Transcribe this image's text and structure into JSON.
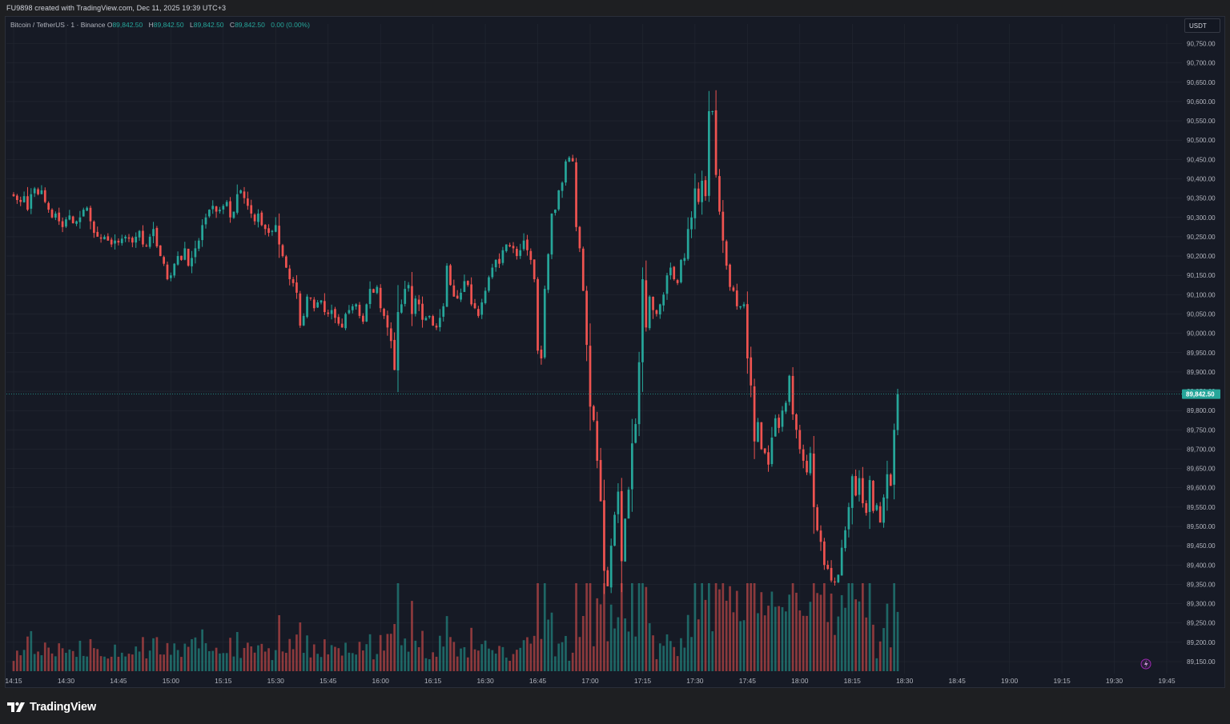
{
  "header": {
    "attribution": "FU9898 created with TradingView.com, Dec 11, 2025 19:39 UTC+3"
  },
  "legend": {
    "symbol": "Bitcoin / TetherUS · 1 · Binance",
    "open_label": "O",
    "open": "89,842.50",
    "high_label": "H",
    "high": "89,842.50",
    "low_label": "L",
    "low": "89,842.50",
    "close_label": "C",
    "close": "89,842.50",
    "change": "0.00 (0.00%)"
  },
  "currency_button": "USDT",
  "last_price_label": "89,842.50",
  "footer": {
    "brand": "TradingView"
  },
  "colors": {
    "up": "#26a69a",
    "down": "#ef5350",
    "background": "#161a25",
    "grid": "#242833",
    "text": "#b2b5be"
  },
  "chart_data": {
    "type": "candlestick",
    "symbol": "Bitcoin / TetherUS",
    "interval": "1",
    "exchange": "Binance",
    "ylim": [
      89125,
      90785
    ],
    "y_ticks": [
      "90,750.00",
      "90,700.00",
      "90,650.00",
      "90,600.00",
      "90,550.00",
      "90,500.00",
      "90,450.00",
      "90,400.00",
      "90,350.00",
      "90,300.00",
      "90,250.00",
      "90,200.00",
      "90,150.00",
      "90,100.00",
      "90,050.00",
      "90,000.00",
      "89,950.00",
      "89,900.00",
      "89,850.00",
      "89,800.00",
      "89,750.00",
      "89,700.00",
      "89,650.00",
      "89,600.00",
      "89,550.00",
      "89,500.00",
      "89,450.00",
      "89,400.00",
      "89,350.00",
      "89,300.00",
      "89,250.00",
      "89,200.00",
      "89,150.00"
    ],
    "x_range_minutes": [
      855,
      1185
    ],
    "x_ticks": [
      {
        "label": "14:15",
        "minute": 855
      },
      {
        "label": "14:30",
        "minute": 870
      },
      {
        "label": "14:45",
        "minute": 885
      },
      {
        "label": "15:00",
        "minute": 900
      },
      {
        "label": "15:15",
        "minute": 915
      },
      {
        "label": "15:30",
        "minute": 930
      },
      {
        "label": "15:45",
        "minute": 945
      },
      {
        "label": "16:00",
        "minute": 960
      },
      {
        "label": "16:15",
        "minute": 975
      },
      {
        "label": "16:30",
        "minute": 990
      },
      {
        "label": "16:45",
        "minute": 1005
      },
      {
        "label": "17:00",
        "minute": 1020
      },
      {
        "label": "17:15",
        "minute": 1035
      },
      {
        "label": "17:30",
        "minute": 1050
      },
      {
        "label": "17:45",
        "minute": 1065
      },
      {
        "label": "18:00",
        "minute": 1080
      },
      {
        "label": "18:15",
        "minute": 1095
      },
      {
        "label": "18:30",
        "minute": 1110
      },
      {
        "label": "18:45",
        "minute": 1125
      },
      {
        "label": "19:00",
        "minute": 1140
      },
      {
        "label": "19:15",
        "minute": 1155
      },
      {
        "label": "19:30",
        "minute": 1170
      },
      {
        "label": "19:45",
        "minute": 1185
      }
    ],
    "last_price": 89842.5,
    "start_minute": 855,
    "close_path": [
      90355,
      90345,
      90340,
      90355,
      90320,
      90360,
      90375,
      90360,
      90370,
      90340,
      90320,
      90300,
      90310,
      90290,
      90275,
      90295,
      90305,
      90285,
      90290,
      90300,
      90320,
      90325,
      90290,
      90260,
      90250,
      90245,
      90250,
      90240,
      90230,
      90240,
      90235,
      90245,
      90250,
      90245,
      90235,
      90250,
      90265,
      90230,
      90225,
      90250,
      90270,
      90225,
      90200,
      90180,
      90140,
      90150,
      90180,
      90200,
      90190,
      90220,
      90175,
      90195,
      90220,
      90240,
      90280,
      90300,
      90320,
      90330,
      90315,
      90320,
      90330,
      90340,
      90300,
      90315,
      90360,
      90370,
      90350,
      90330,
      90310,
      90290,
      90310,
      90280,
      90270,
      90260,
      90265,
      90280,
      90230,
      90200,
      90170,
      90140,
      90130,
      90105,
      90020,
      90045,
      90095,
      90090,
      90065,
      90080,
      90085,
      90055,
      90050,
      90060,
      90040,
      90025,
      90015,
      90050,
      90060,
      90070,
      90075,
      90045,
      90030,
      90075,
      90115,
      90105,
      90120,
      90065,
      90045,
      90015,
      89980,
      89905,
      90055,
      90075,
      90115,
      90125,
      90050,
      90090,
      90075,
      90035,
      90040,
      90045,
      90020,
      90015,
      90040,
      90070,
      90175,
      90125,
      90095,
      90090,
      90105,
      90135,
      90125,
      90075,
      90065,
      90045,
      90080,
      90110,
      90145,
      90170,
      90190,
      90180,
      90215,
      90230,
      90225,
      90220,
      90200,
      90215,
      90240,
      90215,
      90190,
      90140,
      89955,
      89935,
      90115,
      90205,
      90310,
      90320,
      90370,
      90390,
      90445,
      90455,
      90445,
      90275,
      90220,
      90110,
      89970,
      89810,
      89775,
      89670,
      89565,
      89385,
      89345,
      89450,
      89530,
      89590,
      89410,
      89520,
      89595,
      89715,
      89765,
      89925,
      90140,
      90015,
      90095,
      90060,
      90050,
      90075,
      90100,
      90150,
      90170,
      90140,
      90130,
      90190,
      90195,
      90270,
      90300,
      90375,
      90340,
      90395,
      90355,
      90575,
      90575,
      90410,
      90315,
      90240,
      90175,
      90120,
      90110,
      90070,
      90070,
      90075,
      89935,
      89865,
      89720,
      89770,
      89700,
      89690,
      89660,
      89730,
      89780,
      89755,
      89800,
      89820,
      89890,
      89790,
      89750,
      89700,
      89670,
      89640,
      89690,
      89550,
      89490,
      89460,
      89400,
      89390,
      89360,
      89355,
      89375,
      89445,
      89490,
      89550,
      89630,
      89580,
      89625,
      89560,
      89535,
      89620,
      89540,
      89555,
      89510,
      89575,
      89635,
      89605,
      89750,
      89842.5
    ]
  }
}
